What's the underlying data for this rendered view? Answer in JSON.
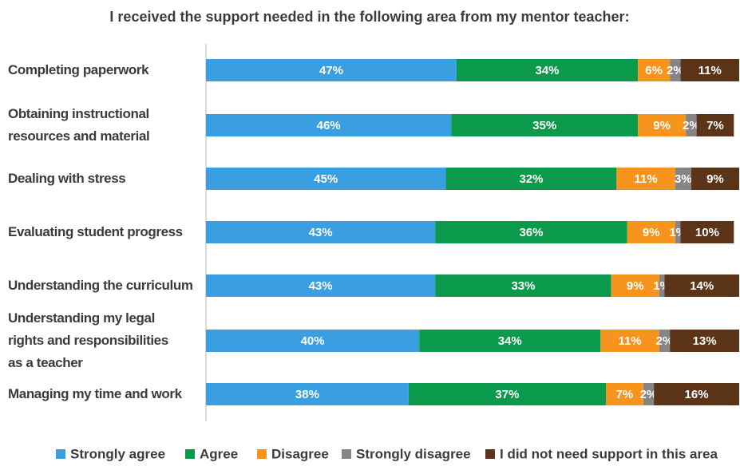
{
  "chart_data": {
    "type": "stacked-bar-horizontal",
    "title": "I received the support needed in the following area from my mentor teacher:",
    "categories": [
      "Completing paperwork",
      "Obtaining instructional\nresources and material",
      "Dealing with stress",
      "Evaluating student progress",
      "Understanding the curriculum",
      "Understanding my legal\nrights and responsibilities\nas a teacher",
      "Managing my time and work"
    ],
    "xlim": [
      0,
      100
    ],
    "legend": "bottom",
    "series": [
      {
        "name": "Strongly agree",
        "color": "#3a9fe0",
        "values": [
          47,
          46,
          45,
          43,
          43,
          40,
          38
        ],
        "value_labels": [
          "47%",
          "46%",
          "45%",
          "43%",
          "43%",
          "40%",
          "38%"
        ]
      },
      {
        "name": "Agree",
        "color": "#0b9a4b",
        "values": [
          34,
          35,
          32,
          36,
          33,
          34,
          37
        ],
        "value_labels": [
          "34%",
          "35%",
          "32%",
          "36%",
          "33%",
          "34%",
          "37%"
        ]
      },
      {
        "name": "Disagree",
        "color": "#f7941d",
        "values": [
          6,
          9,
          11,
          9,
          9,
          11,
          7
        ],
        "value_labels": [
          "6%",
          "9%",
          "11%",
          "9%",
          "9%",
          "11%",
          "7%"
        ]
      },
      {
        "name": "Strongly disagree",
        "color": "#858585",
        "values": [
          2,
          2,
          3,
          1,
          1,
          2,
          2
        ],
        "value_labels": [
          "2%",
          "2%",
          "3%",
          "1%",
          "1%",
          "2%",
          "2%"
        ]
      },
      {
        "name": "I did not need support in this area",
        "color": "#5c3418",
        "values": [
          11,
          7,
          9,
          10,
          14,
          13,
          16
        ],
        "value_labels": [
          "11%",
          "7%",
          "9%",
          "10%",
          "14%",
          "13%",
          "16%"
        ]
      }
    ]
  }
}
